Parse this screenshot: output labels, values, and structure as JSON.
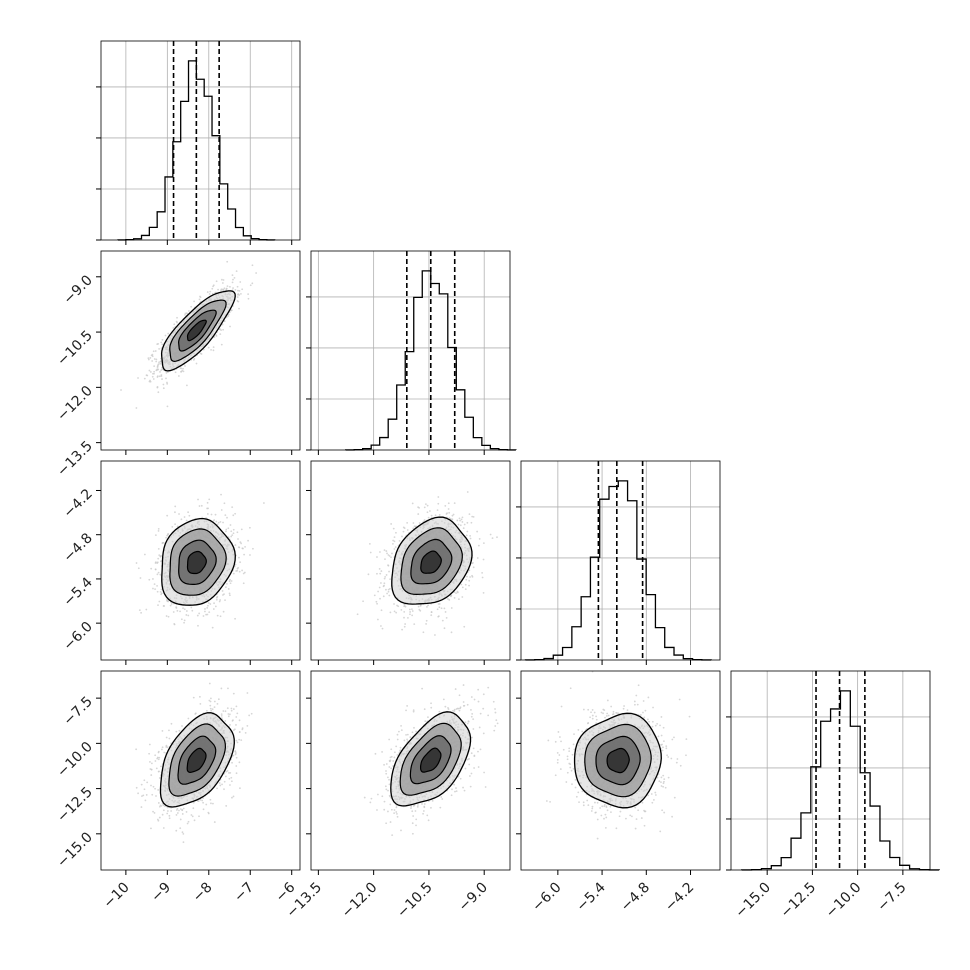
{
  "chart_data": {
    "type": "corner",
    "n_params": 4,
    "params": [
      {
        "index": 0,
        "range": [
          -10.6,
          -5.8
        ],
        "ticks": [
          -10,
          -9,
          -8,
          -7,
          -6
        ],
        "tick_labels": [
          "−10",
          "−9",
          "−8",
          "−7",
          "−6"
        ],
        "quantiles": [
          -8.85,
          -8.3,
          -7.75
        ],
        "mean": -8.3,
        "sd": 0.45
      },
      {
        "index": 1,
        "range": [
          -13.7,
          -8.3
        ],
        "ticks": [
          -13.5,
          -12.0,
          -10.5,
          -9.0
        ],
        "tick_labels": [
          "−13.5",
          "−12.0",
          "−10.5",
          "−9.0"
        ],
        "quantiles": [
          -11.1,
          -10.45,
          -9.8
        ],
        "mean": -10.45,
        "sd": 0.55
      },
      {
        "index": 2,
        "range": [
          -6.5,
          -3.8
        ],
        "ticks": [
          -6.0,
          -5.4,
          -4.8,
          -4.2
        ],
        "tick_labels": [
          "−6.0",
          "−5.4",
          "−4.8",
          "−4.2"
        ],
        "quantiles": [
          -5.45,
          -5.2,
          -4.85
        ],
        "mean": -5.18,
        "sd": 0.3
      },
      {
        "index": 3,
        "range": [
          -17.0,
          -6.0
        ],
        "ticks": [
          -15.0,
          -12.5,
          -10.0,
          -7.5
        ],
        "tick_labels": [
          "−15.0",
          "−12.5",
          "−10.0",
          "−7.5"
        ],
        "quantiles": [
          -12.3,
          -11.0,
          -9.6
        ],
        "mean": -10.95,
        "sd": 1.3
      }
    ],
    "correlations": {
      "1-0": 0.8,
      "2-0": 0.15,
      "2-1": 0.25,
      "3-0": 0.45,
      "3-1": 0.5,
      "3-2": 0.05
    },
    "contour_levels_sigma": [
      0.5,
      1.0,
      1.5,
      2.0
    ],
    "hist_bins": 20
  }
}
